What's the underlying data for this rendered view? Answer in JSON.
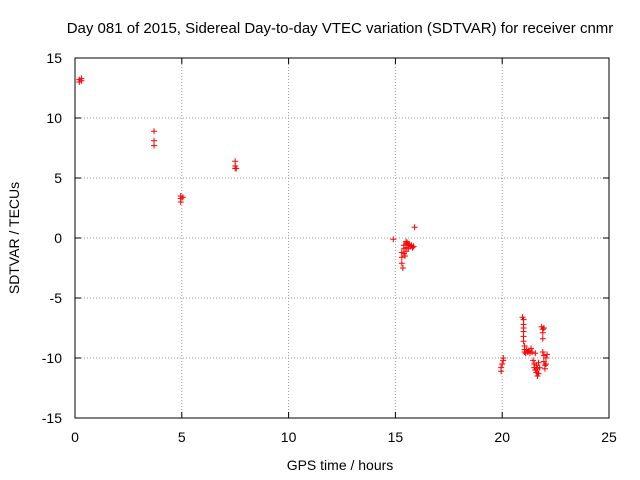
{
  "chart_data": {
    "type": "scatter",
    "title": "Day 081 of 2015, Sidereal Day-to-day VTEC variation (SDTVAR) for receiver cnmr",
    "xlabel": "GPS time / hours",
    "ylabel": "SDTVAR / TECUs",
    "xlim": [
      0,
      25
    ],
    "ylim": [
      -15,
      15
    ],
    "xticks": [
      0,
      5,
      10,
      15,
      20,
      25
    ],
    "yticks": [
      -15,
      -10,
      -5,
      0,
      5,
      10,
      15
    ],
    "xtick_labels": [
      "0",
      "5",
      "10",
      "15",
      "20",
      "25"
    ],
    "ytick_labels": [
      "-15",
      "-10",
      "-5",
      "0",
      "5",
      "10",
      "15"
    ],
    "grid": true,
    "marker": "+",
    "marker_color": "#ff0000",
    "series": [
      {
        "name": "SDTVAR",
        "points": [
          [
            0.2,
            13.2
          ],
          [
            0.2,
            13.0
          ],
          [
            0.3,
            13.3
          ],
          [
            0.3,
            13.1
          ],
          [
            3.7,
            8.9
          ],
          [
            3.7,
            8.1
          ],
          [
            3.7,
            7.7
          ],
          [
            4.95,
            3.5
          ],
          [
            4.95,
            3.3
          ],
          [
            4.95,
            3.0
          ],
          [
            5.05,
            3.4
          ],
          [
            7.5,
            6.4
          ],
          [
            7.5,
            6.0
          ],
          [
            7.5,
            5.8
          ],
          [
            7.55,
            5.8
          ],
          [
            14.9,
            -0.1
          ],
          [
            15.9,
            0.9
          ],
          [
            15.3,
            -1.2
          ],
          [
            15.3,
            -1.6
          ],
          [
            15.3,
            -2.1
          ],
          [
            15.35,
            -2.5
          ],
          [
            15.4,
            -0.6
          ],
          [
            15.4,
            -0.9
          ],
          [
            15.4,
            -1.3
          ],
          [
            15.45,
            -1.5
          ],
          [
            15.5,
            -0.3
          ],
          [
            15.5,
            -0.5
          ],
          [
            15.5,
            -0.8
          ],
          [
            15.5,
            -1.1
          ],
          [
            15.55,
            -0.4
          ],
          [
            15.6,
            -0.6
          ],
          [
            15.6,
            -0.9
          ],
          [
            15.65,
            -0.5
          ],
          [
            15.7,
            -0.7
          ],
          [
            15.75,
            -0.6
          ],
          [
            15.8,
            -0.8
          ],
          [
            15.85,
            -0.7
          ],
          [
            19.95,
            -10.8
          ],
          [
            19.95,
            -11.1
          ],
          [
            20.0,
            -10.5
          ],
          [
            20.05,
            -10.2
          ],
          [
            20.05,
            -10.0
          ],
          [
            20.95,
            -6.6
          ],
          [
            21.0,
            -6.8
          ],
          [
            21.0,
            -7.2
          ],
          [
            21.0,
            -7.5
          ],
          [
            21.0,
            -7.8
          ],
          [
            21.0,
            -8.2
          ],
          [
            21.0,
            -8.6
          ],
          [
            21.05,
            -9.0
          ],
          [
            21.05,
            -9.3
          ],
          [
            21.05,
            -9.5
          ],
          [
            21.1,
            -9.6
          ],
          [
            21.15,
            -9.3
          ],
          [
            21.2,
            -9.5
          ],
          [
            21.25,
            -9.4
          ],
          [
            21.3,
            -9.6
          ],
          [
            21.35,
            -9.2
          ],
          [
            21.4,
            -9.5
          ],
          [
            21.45,
            -10.2
          ],
          [
            21.5,
            -10.5
          ],
          [
            21.5,
            -10.8
          ],
          [
            21.55,
            -11.0
          ],
          [
            21.55,
            -9.6
          ],
          [
            21.6,
            -11.2
          ],
          [
            21.6,
            -10.6
          ],
          [
            21.65,
            -11.5
          ],
          [
            21.65,
            -10.9
          ],
          [
            21.7,
            -11.3
          ],
          [
            21.7,
            -10.4
          ],
          [
            21.75,
            -10.8
          ],
          [
            21.85,
            -7.4
          ],
          [
            21.9,
            -7.6
          ],
          [
            21.9,
            -7.9
          ],
          [
            21.9,
            -8.4
          ],
          [
            21.95,
            -7.5
          ],
          [
            21.9,
            -9.5
          ],
          [
            21.95,
            -9.8
          ],
          [
            21.95,
            -10.3
          ],
          [
            22.0,
            -10.6
          ],
          [
            22.0,
            -10.9
          ],
          [
            22.05,
            -10.0
          ],
          [
            22.05,
            -10.5
          ],
          [
            22.1,
            -9.7
          ]
        ]
      }
    ]
  }
}
